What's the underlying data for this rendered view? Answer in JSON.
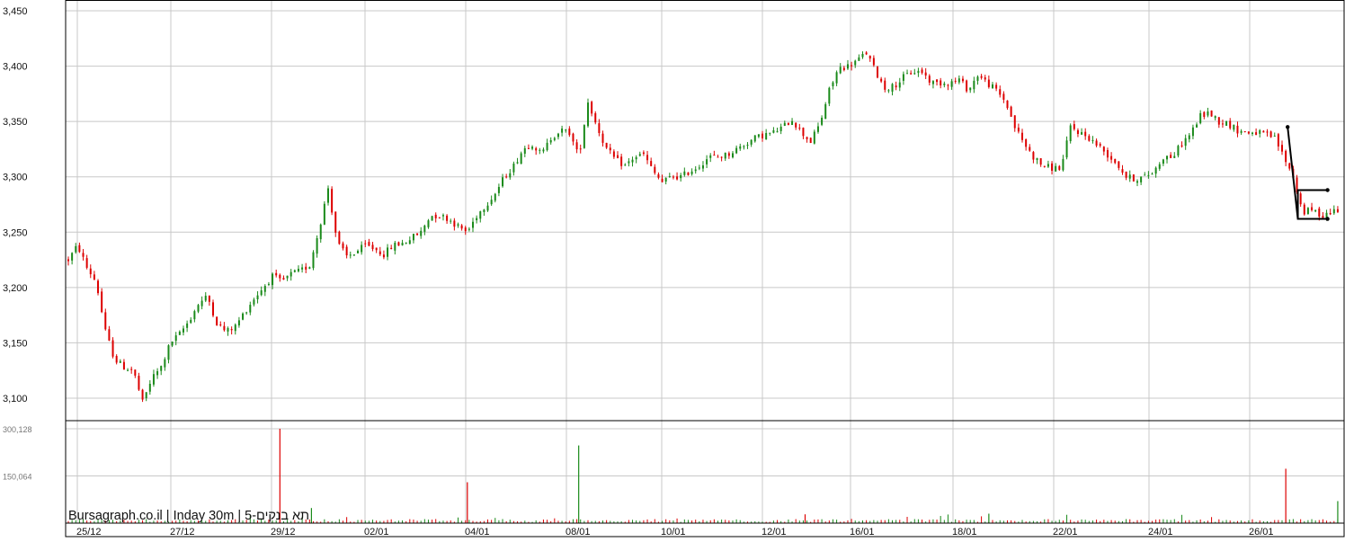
{
  "chart_data": {
    "type": "candlestick",
    "watermark": "Bursagraph.co.il | Inday 30m | 5-תא בנקים",
    "x_labels": [
      "25/12",
      "27/12",
      "29/12",
      "02/01",
      "04/01",
      "08/01",
      "10/01",
      "12/01",
      "16/01",
      "18/01",
      "22/01",
      "24/01",
      "26/01"
    ],
    "price_axis": {
      "ticks": [
        "3,450",
        "3,400",
        "3,350",
        "3,300",
        "3,250",
        "3,200",
        "3,150",
        "3,100"
      ],
      "tick_values": [
        3450,
        3400,
        3350,
        3300,
        3250,
        3200,
        3150,
        3100
      ],
      "ylim": [
        3080,
        3460
      ]
    },
    "volume_axis": {
      "ticks": [
        "300,128",
        "150,064"
      ],
      "tick_values": [
        300128,
        150064
      ],
      "ylim": [
        0,
        340000
      ]
    },
    "price_path": [
      [
        0,
        3225
      ],
      [
        10,
        3238
      ],
      [
        20,
        3218
      ],
      [
        30,
        3205
      ],
      [
        40,
        3160
      ],
      [
        50,
        3135
      ],
      [
        60,
        3128
      ],
      [
        70,
        3125
      ],
      [
        80,
        3096
      ],
      [
        90,
        3118
      ],
      [
        100,
        3128
      ],
      [
        110,
        3150
      ],
      [
        120,
        3158
      ],
      [
        130,
        3170
      ],
      [
        140,
        3185
      ],
      [
        150,
        3192
      ],
      [
        160,
        3168
      ],
      [
        170,
        3160
      ],
      [
        180,
        3165
      ],
      [
        190,
        3178
      ],
      [
        200,
        3190
      ],
      [
        210,
        3200
      ],
      [
        220,
        3210
      ],
      [
        230,
        3205
      ],
      [
        240,
        3212
      ],
      [
        250,
        3215
      ],
      [
        260,
        3220
      ],
      [
        270,
        3252
      ],
      [
        280,
        3290
      ],
      [
        290,
        3240
      ],
      [
        300,
        3228
      ],
      [
        310,
        3232
      ],
      [
        320,
        3238
      ],
      [
        330,
        3235
      ],
      [
        340,
        3230
      ],
      [
        350,
        3238
      ],
      [
        360,
        3240
      ],
      [
        370,
        3245
      ],
      [
        380,
        3250
      ],
      [
        390,
        3265
      ],
      [
        400,
        3265
      ],
      [
        410,
        3262
      ],
      [
        420,
        3255
      ],
      [
        430,
        3250
      ],
      [
        440,
        3265
      ],
      [
        450,
        3275
      ],
      [
        460,
        3285
      ],
      [
        470,
        3300
      ],
      [
        480,
        3310
      ],
      [
        490,
        3325
      ],
      [
        500,
        3330
      ],
      [
        510,
        3320
      ],
      [
        520,
        3335
      ],
      [
        530,
        3342
      ],
      [
        540,
        3340
      ],
      [
        550,
        3318
      ],
      [
        560,
        3368
      ],
      [
        570,
        3345
      ],
      [
        580,
        3325
      ],
      [
        590,
        3315
      ],
      [
        600,
        3310
      ],
      [
        610,
        3318
      ],
      [
        620,
        3320
      ],
      [
        630,
        3305
      ],
      [
        640,
        3295
      ],
      [
        650,
        3300
      ],
      [
        660,
        3300
      ],
      [
        670,
        3305
      ],
      [
        680,
        3310
      ],
      [
        690,
        3318
      ],
      [
        700,
        3318
      ],
      [
        710,
        3320
      ],
      [
        720,
        3325
      ],
      [
        730,
        3330
      ],
      [
        740,
        3335
      ],
      [
        750,
        3338
      ],
      [
        760,
        3340
      ],
      [
        770,
        3345
      ],
      [
        780,
        3352
      ],
      [
        790,
        3340
      ],
      [
        800,
        3332
      ],
      [
        810,
        3348
      ],
      [
        820,
        3378
      ],
      [
        830,
        3398
      ],
      [
        840,
        3400
      ],
      [
        850,
        3405
      ],
      [
        860,
        3412
      ],
      [
        870,
        3395
      ],
      [
        880,
        3380
      ],
      [
        890,
        3382
      ],
      [
        900,
        3390
      ],
      [
        910,
        3395
      ],
      [
        920,
        3395
      ],
      [
        930,
        3385
      ],
      [
        940,
        3385
      ],
      [
        950,
        3385
      ],
      [
        960,
        3388
      ],
      [
        970,
        3378
      ],
      [
        980,
        3392
      ],
      [
        990,
        3385
      ],
      [
        1000,
        3378
      ],
      [
        1010,
        3368
      ],
      [
        1020,
        3345
      ],
      [
        1030,
        3330
      ],
      [
        1040,
        3318
      ],
      [
        1050,
        3310
      ],
      [
        1060,
        3308
      ],
      [
        1070,
        3308
      ],
      [
        1080,
        3345
      ],
      [
        1090,
        3340
      ],
      [
        1100,
        3335
      ],
      [
        1110,
        3328
      ],
      [
        1120,
        3320
      ],
      [
        1130,
        3312
      ],
      [
        1140,
        3300
      ],
      [
        1150,
        3298
      ],
      [
        1160,
        3300
      ],
      [
        1170,
        3305
      ],
      [
        1180,
        3318
      ],
      [
        1190,
        3318
      ],
      [
        1200,
        3330
      ],
      [
        1210,
        3340
      ],
      [
        1220,
        3355
      ],
      [
        1230,
        3358
      ],
      [
        1240,
        3350
      ],
      [
        1250,
        3348
      ],
      [
        1260,
        3342
      ],
      [
        1270,
        3340
      ],
      [
        1280,
        3340
      ],
      [
        1290,
        3338
      ],
      [
        1300,
        3335
      ],
      [
        1310,
        3318
      ],
      [
        1320,
        3300
      ],
      [
        1330,
        3268
      ],
      [
        1340,
        3270
      ],
      [
        1350,
        3265
      ],
      [
        1360,
        3268
      ],
      [
        1370,
        3272
      ]
    ],
    "volume_spikes": [
      [
        228,
        300128
      ],
      [
        262,
        48000
      ],
      [
        430,
        130000
      ],
      [
        550,
        247000
      ],
      [
        1312,
        173000
      ],
      [
        1368,
        70000
      ],
      [
        794,
        28000
      ],
      [
        992,
        30000
      ]
    ],
    "annotation": {
      "description": "trend line and rectangle drawn at right",
      "points": [
        [
          1314,
          3345
        ],
        [
          1325,
          3262
        ],
        [
          1357,
          3262
        ],
        [
          1357,
          3288
        ],
        [
          1325,
          3288
        ]
      ]
    }
  }
}
